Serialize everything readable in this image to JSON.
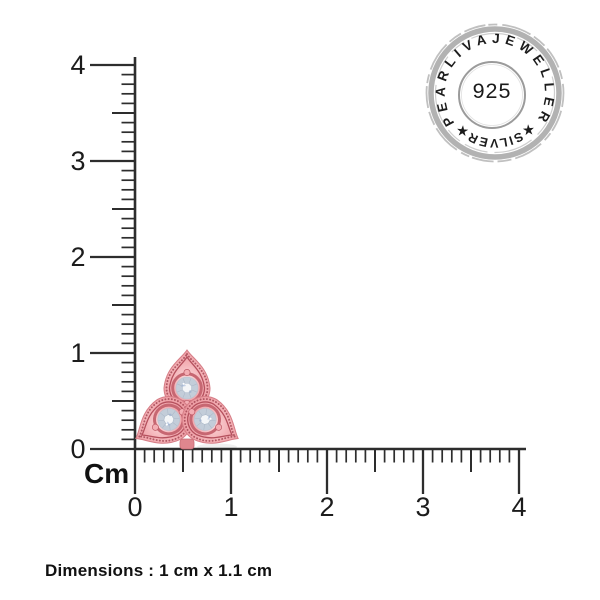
{
  "image": {
    "background": "#ffffff"
  },
  "rulers": {
    "unit_label": "Cm",
    "min_cm": 0,
    "max_cm": 4,
    "tick_labels": [
      "0",
      "1",
      "2",
      "3",
      "4"
    ],
    "color": "#2d2d2d"
  },
  "stamp": {
    "arc_text": "PEARLIVAJEWELLER",
    "bottom_text": "★SILVER★",
    "center_text": "925",
    "ring_color": "#a5a5a5",
    "text_color": "#1c1c1c"
  },
  "jewelry": {
    "description": "rose gold three-petal flower stud with round diamonds",
    "metal_color": "#ec9aa0",
    "metal_dark": "#b5505d",
    "diamond_color": "#ffffff"
  },
  "caption": {
    "text": "Dimensions : 1 cm x 1.1 cm"
  }
}
